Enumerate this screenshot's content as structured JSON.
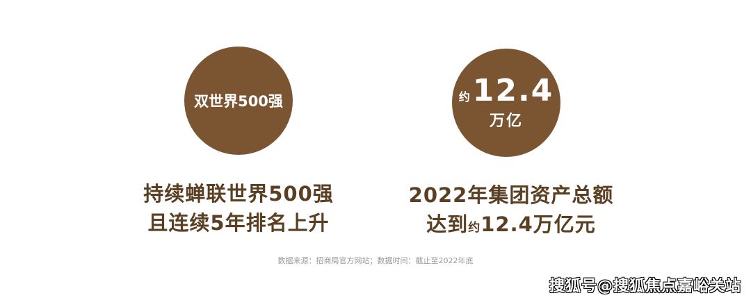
{
  "circle_left": {
    "text": "双世界500强"
  },
  "circle_right": {
    "approx": "约",
    "value": "12.4",
    "unit": "万亿"
  },
  "heading_left": {
    "line1": "持续蝉联世界500强",
    "line2": "且连续5年排名上升"
  },
  "heading_right": {
    "line1": "2022年集团资产总额",
    "line2_prefix": "达到",
    "line2_approx": "约",
    "line2_value": "12.4万亿元"
  },
  "source": "数据来源：招商局官方网站；数据时间：截止至2022年底",
  "watermark": "搜狐号@搜狐焦点嘉峪关站",
  "colors": {
    "circle": "#7b5531",
    "heading": "#5b3f23"
  }
}
